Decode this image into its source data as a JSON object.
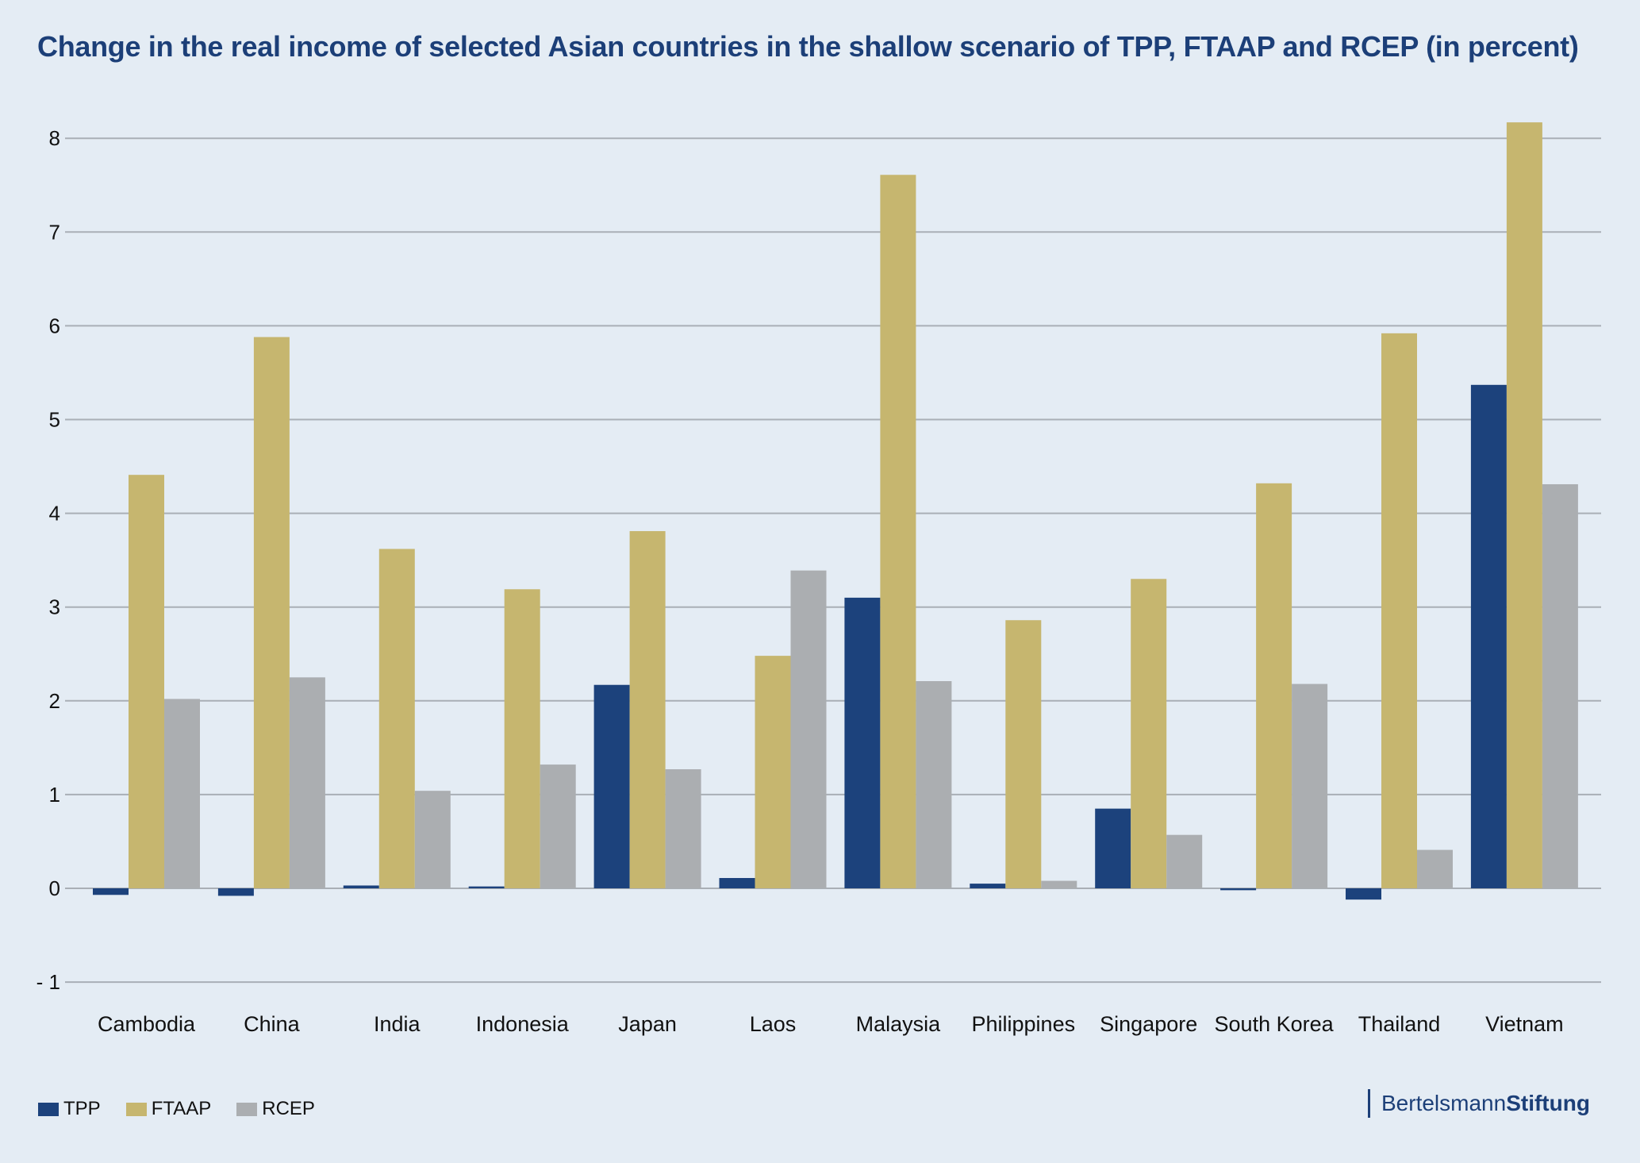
{
  "chart_data": {
    "type": "bar",
    "title": "Change in the real income of selected Asian countries in the shallow scenario of TPP, FTAAP and RCEP (in percent)",
    "xlabel": "",
    "ylabel": "",
    "ylim": [
      -1,
      8
    ],
    "yticks": [
      -1,
      0,
      1,
      2,
      3,
      4,
      5,
      6,
      7,
      8
    ],
    "ytick_labels": [
      "- 1",
      "0",
      "1",
      "2",
      "3",
      "4",
      "5",
      "6",
      "7",
      "8"
    ],
    "grid": true,
    "legend_position": "bottom-left",
    "categories": [
      "Cambodia",
      "China",
      "India",
      "Indonesia",
      "Japan",
      "Laos",
      "Malaysia",
      "Philippines",
      "Singapore",
      "South Korea",
      "Thailand",
      "Vietnam"
    ],
    "series": [
      {
        "name": "TPP",
        "color": "#1c427c",
        "values": [
          -0.07,
          -0.08,
          0.03,
          0.02,
          2.17,
          0.11,
          3.1,
          0.05,
          0.85,
          -0.02,
          -0.12,
          5.37
        ]
      },
      {
        "name": "FTAAP",
        "color": "#c6b66f",
        "values": [
          4.41,
          5.88,
          3.62,
          3.19,
          3.81,
          2.48,
          7.61,
          2.86,
          3.3,
          4.32,
          5.92,
          8.17
        ]
      },
      {
        "name": "RCEP",
        "color": "#abaeb1",
        "values": [
          2.02,
          2.25,
          1.04,
          1.32,
          1.27,
          3.39,
          2.21,
          0.08,
          0.57,
          2.18,
          0.41,
          4.31
        ]
      }
    ]
  },
  "logo": {
    "part1": "Bertelsmann",
    "part2": "Stiftung"
  }
}
